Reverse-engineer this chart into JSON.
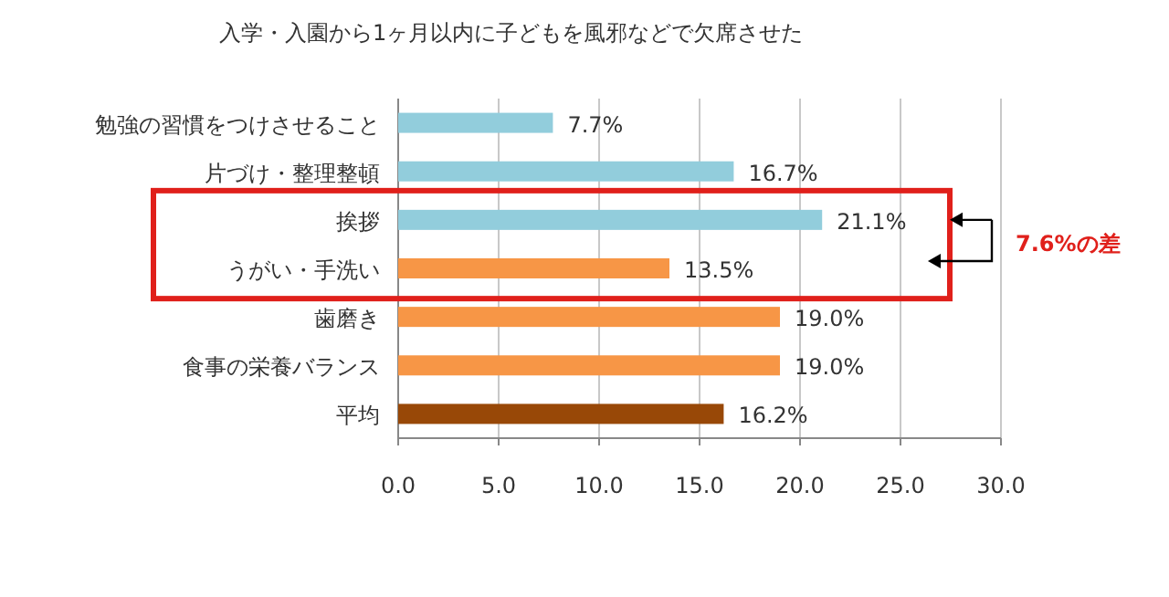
{
  "chart_data": {
    "type": "bar",
    "orientation": "horizontal",
    "title": "入学・入園から1ヶ月以内に子どもを風邪などで欠席させた",
    "categories": [
      "勉強の習慣をつけさせること",
      "片づけ・整理整頓",
      "挨拶",
      "うがい・手洗い",
      "歯磨き",
      "食事の栄養バランス",
      "平均"
    ],
    "values": [
      7.7,
      16.7,
      21.1,
      13.5,
      19.0,
      19.0,
      16.2
    ],
    "colors": [
      "#92cddc",
      "#92cddc",
      "#92cddc",
      "#f79646",
      "#f79646",
      "#f79646",
      "#984807"
    ],
    "value_labels": [
      "7.7%",
      "16.7%",
      "21.1%",
      "13.5%",
      "19.0%",
      "19.0%",
      "16.2%"
    ],
    "xlim": [
      0,
      30
    ],
    "xticks": [
      {
        "value": 0,
        "label": "0.0"
      },
      {
        "value": 5,
        "label": "5.0"
      },
      {
        "value": 10,
        "label": "10.0"
      },
      {
        "value": 15,
        "label": "15.0"
      },
      {
        "value": 20,
        "label": "20.0"
      },
      {
        "value": 25,
        "label": "25.0"
      },
      {
        "value": 30,
        "label": "30.0"
      }
    ],
    "grid": "x",
    "annotations": [
      "7.6%の差"
    ]
  }
}
